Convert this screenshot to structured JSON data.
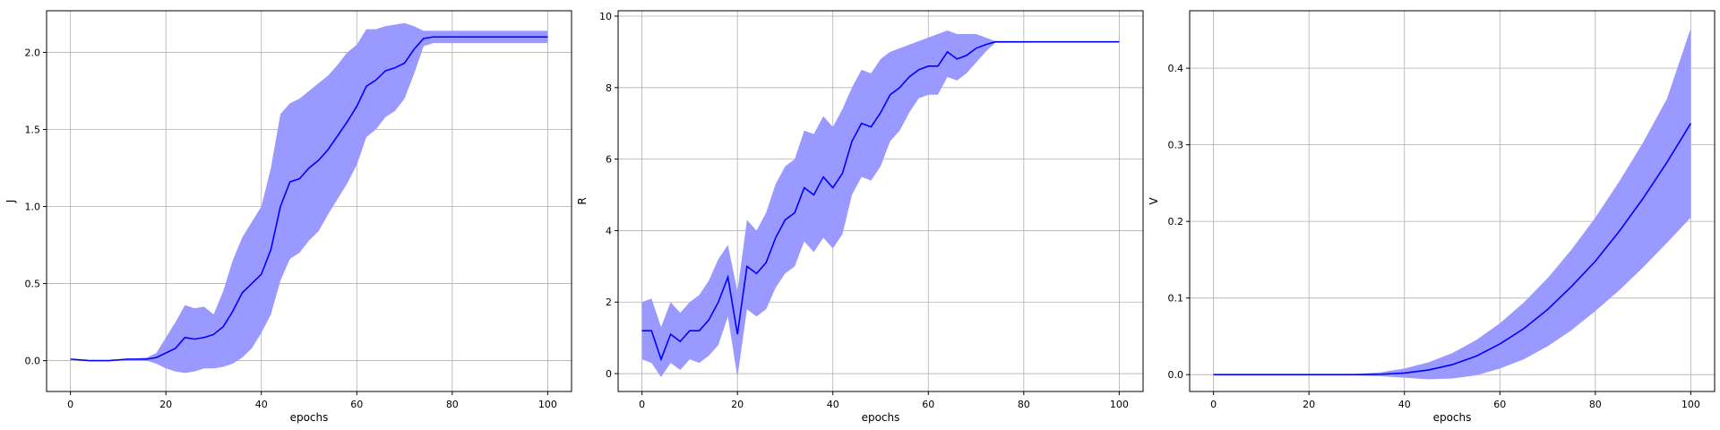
{
  "chart_data": [
    {
      "type": "line",
      "xlabel": "epochs",
      "ylabel": "J",
      "xlim": [
        -5,
        105
      ],
      "ylim": [
        -0.2,
        2.27
      ],
      "xticks": [
        0,
        20,
        40,
        60,
        80,
        100
      ],
      "yticks": [
        0.0,
        0.5,
        1.0,
        1.5,
        2.0
      ],
      "xtick_labels": [
        "0",
        "20",
        "40",
        "60",
        "80",
        "100"
      ],
      "ytick_labels": [
        "0.0",
        "0.5",
        "1.0",
        "1.5",
        "2.0"
      ],
      "grid": true,
      "line_color": "#0000ff",
      "band_color": "#9999ff",
      "x": [
        0,
        4,
        8,
        12,
        16,
        18,
        20,
        22,
        24,
        26,
        28,
        30,
        32,
        34,
        36,
        38,
        40,
        42,
        44,
        46,
        48,
        50,
        52,
        54,
        56,
        58,
        60,
        62,
        64,
        66,
        68,
        70,
        72,
        74,
        76,
        100
      ],
      "mean": [
        0.01,
        0.0,
        0.0,
        0.01,
        0.01,
        0.02,
        0.05,
        0.08,
        0.15,
        0.14,
        0.15,
        0.17,
        0.22,
        0.32,
        0.44,
        0.5,
        0.56,
        0.72,
        1.0,
        1.16,
        1.18,
        1.25,
        1.3,
        1.37,
        1.46,
        1.55,
        1.65,
        1.78,
        1.82,
        1.88,
        1.9,
        1.93,
        2.02,
        2.09,
        2.1,
        2.1
      ],
      "upper": [
        0.01,
        0.0,
        0.0,
        0.01,
        0.02,
        0.05,
        0.15,
        0.25,
        0.36,
        0.34,
        0.35,
        0.3,
        0.45,
        0.65,
        0.8,
        0.9,
        1.0,
        1.25,
        1.6,
        1.67,
        1.7,
        1.75,
        1.8,
        1.85,
        1.92,
        2.0,
        2.05,
        2.15,
        2.15,
        2.17,
        2.18,
        2.19,
        2.17,
        2.14,
        2.14,
        2.14
      ],
      "lower": [
        0.01,
        0.0,
        0.0,
        0.0,
        0.0,
        -0.02,
        -0.05,
        -0.07,
        -0.08,
        -0.07,
        -0.05,
        -0.05,
        -0.04,
        -0.02,
        0.02,
        0.08,
        0.18,
        0.3,
        0.52,
        0.66,
        0.7,
        0.78,
        0.84,
        0.95,
        1.05,
        1.15,
        1.27,
        1.45,
        1.5,
        1.58,
        1.62,
        1.7,
        1.86,
        2.04,
        2.06,
        2.06
      ]
    },
    {
      "type": "line",
      "xlabel": "epochs",
      "ylabel": "R",
      "xlim": [
        -5,
        105
      ],
      "ylim": [
        -0.5,
        10.15
      ],
      "xticks": [
        0,
        20,
        40,
        60,
        80,
        100
      ],
      "yticks": [
        0,
        2,
        4,
        6,
        8,
        10
      ],
      "xtick_labels": [
        "0",
        "20",
        "40",
        "60",
        "80",
        "100"
      ],
      "ytick_labels": [
        "0",
        "2",
        "4",
        "6",
        "8",
        "10"
      ],
      "grid": true,
      "line_color": "#0000ff",
      "band_color": "#9999ff",
      "x": [
        0,
        2,
        4,
        6,
        8,
        10,
        12,
        14,
        16,
        18,
        20,
        22,
        24,
        26,
        28,
        30,
        32,
        34,
        36,
        38,
        40,
        42,
        44,
        46,
        48,
        50,
        52,
        54,
        56,
        58,
        60,
        62,
        64,
        66,
        68,
        70,
        72,
        74,
        100
      ],
      "mean": [
        1.2,
        1.2,
        0.4,
        1.1,
        0.9,
        1.2,
        1.2,
        1.5,
        2.0,
        2.7,
        1.1,
        3.0,
        2.8,
        3.1,
        3.8,
        4.3,
        4.5,
        5.2,
        5.0,
        5.5,
        5.2,
        5.6,
        6.5,
        7.0,
        6.9,
        7.3,
        7.8,
        8.0,
        8.3,
        8.5,
        8.6,
        8.6,
        9.0,
        8.8,
        8.9,
        9.1,
        9.2,
        9.28,
        9.28
      ],
      "upper": [
        2.0,
        2.1,
        1.3,
        2.0,
        1.7,
        2.0,
        2.2,
        2.6,
        3.2,
        3.6,
        2.3,
        4.3,
        4.0,
        4.5,
        5.3,
        5.8,
        6.0,
        6.8,
        6.7,
        7.2,
        6.9,
        7.4,
        8.0,
        8.5,
        8.4,
        8.8,
        9.0,
        9.1,
        9.2,
        9.3,
        9.4,
        9.5,
        9.6,
        9.5,
        9.5,
        9.5,
        9.4,
        9.3,
        9.28
      ],
      "lower": [
        0.4,
        0.3,
        -0.1,
        0.3,
        0.1,
        0.4,
        0.3,
        0.5,
        0.8,
        1.6,
        -0.1,
        1.8,
        1.6,
        1.8,
        2.4,
        2.8,
        3.0,
        3.7,
        3.4,
        3.8,
        3.5,
        3.9,
        5.0,
        5.5,
        5.4,
        5.8,
        6.5,
        6.8,
        7.3,
        7.7,
        7.8,
        7.8,
        8.3,
        8.2,
        8.4,
        8.7,
        9.0,
        9.25,
        9.28
      ]
    },
    {
      "type": "line",
      "xlabel": "epochs",
      "ylabel": "V",
      "xlim": [
        -5,
        105
      ],
      "ylim": [
        -0.022,
        0.475
      ],
      "xticks": [
        0,
        20,
        40,
        60,
        80,
        100
      ],
      "yticks": [
        0.0,
        0.1,
        0.2,
        0.3,
        0.4
      ],
      "xtick_labels": [
        "0",
        "20",
        "40",
        "60",
        "80",
        "100"
      ],
      "ytick_labels": [
        "0.0",
        "0.1",
        "0.2",
        "0.3",
        "0.4"
      ],
      "grid": true,
      "line_color": "#0000ff",
      "band_color": "#9999ff",
      "x": [
        0,
        20,
        30,
        35,
        40,
        45,
        50,
        55,
        60,
        65,
        70,
        75,
        80,
        85,
        90,
        95,
        100
      ],
      "mean": [
        0.0,
        0.0,
        0.0,
        0.0005,
        0.002,
        0.006,
        0.013,
        0.024,
        0.04,
        0.06,
        0.085,
        0.115,
        0.148,
        0.187,
        0.23,
        0.277,
        0.328
      ],
      "upper": [
        0.0,
        0.0,
        0.001,
        0.003,
        0.008,
        0.016,
        0.028,
        0.045,
        0.067,
        0.094,
        0.126,
        0.163,
        0.205,
        0.252,
        0.303,
        0.36,
        0.452
      ],
      "lower": [
        0.0,
        0.0,
        -0.001,
        -0.002,
        -0.004,
        -0.006,
        -0.005,
        -0.001,
        0.008,
        0.02,
        0.037,
        0.058,
        0.083,
        0.11,
        0.14,
        0.172,
        0.205
      ]
    }
  ]
}
